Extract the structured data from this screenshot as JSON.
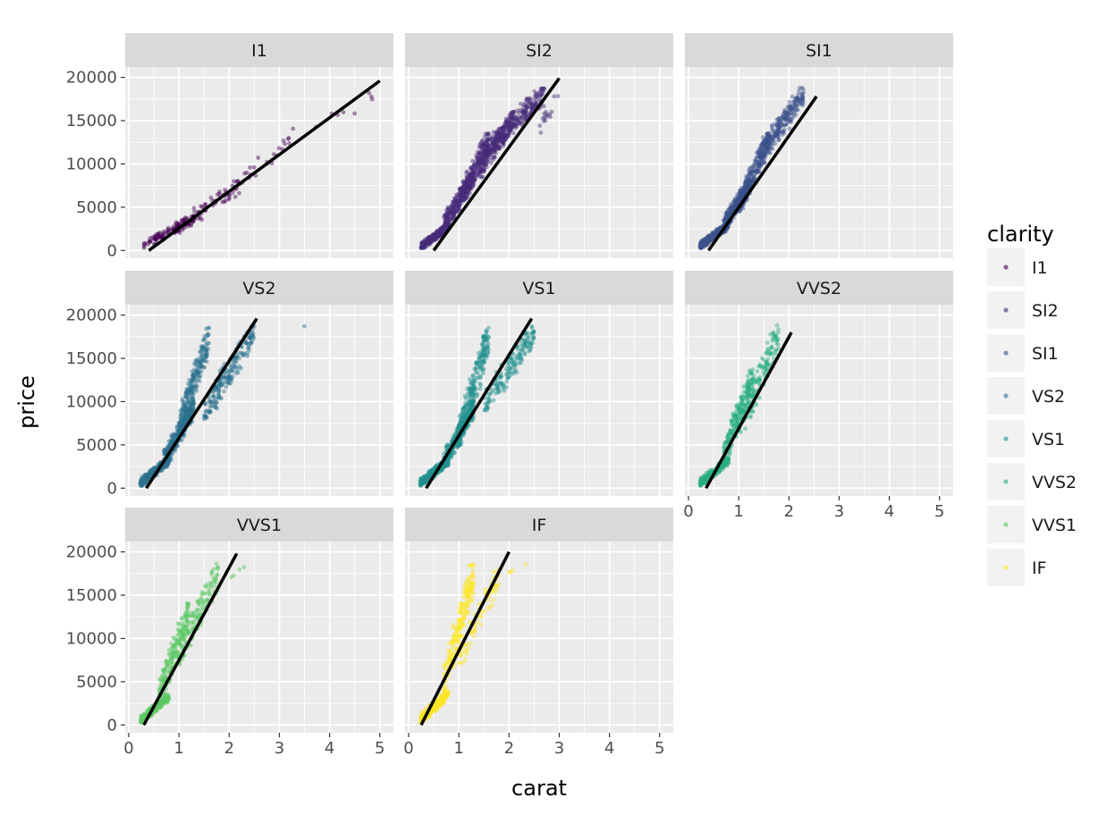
{
  "chart_data": {
    "type": "scatter",
    "facet_by": "clarity",
    "xlabel": "carat",
    "ylabel": "price",
    "xlim": [
      0,
      5.2
    ],
    "ylim": [
      0,
      20000
    ],
    "x_ticks": [
      0,
      1,
      2,
      3,
      4,
      5
    ],
    "y_ticks": [
      0,
      5000,
      10000,
      15000,
      20000
    ],
    "x_tick_labels": [
      "0",
      "1",
      "2",
      "3",
      "4",
      "5"
    ],
    "y_tick_labels": [
      "0",
      "5000",
      "10000",
      "15000",
      "20000"
    ],
    "grid": true,
    "legend": {
      "title": "clarity",
      "position": "right",
      "entries": [
        "I1",
        "SI2",
        "SI1",
        "VS2",
        "VS1",
        "VVS2",
        "VVS1",
        "IF"
      ]
    },
    "panels": [
      {
        "name": "I1",
        "color": "#440154",
        "trend": [
          [
            0.4,
            0
          ],
          [
            5.0,
            19600
          ]
        ],
        "clusters": [
          {
            "x": [
              0.3,
              1.3
            ],
            "y": [
              300,
              4000
            ],
            "n": 110
          },
          {
            "x": [
              0.9,
              2.2
            ],
            "y": [
              2000,
              8000
            ],
            "n": 70
          },
          {
            "x": [
              2.0,
              3.2
            ],
            "y": [
              6000,
              13000
            ],
            "n": 25
          },
          {
            "x": [
              3.0,
              5.0
            ],
            "y": [
              12000,
              18500
            ],
            "n": 10
          }
        ]
      },
      {
        "name": "SI2",
        "color": "#472c7a",
        "trend": [
          [
            0.5,
            0
          ],
          [
            3.0,
            19900
          ]
        ],
        "clusters": [
          {
            "x": [
              0.25,
              0.8
            ],
            "y": [
              300,
              3000
            ],
            "n": 300
          },
          {
            "x": [
              0.7,
              1.3
            ],
            "y": [
              2500,
              9000
            ],
            "n": 300
          },
          {
            "x": [
              1.0,
              1.6
            ],
            "y": [
              5000,
              13500
            ],
            "n": 200
          },
          {
            "x": [
              1.4,
              2.1
            ],
            "y": [
              8500,
              16000
            ],
            "n": 200
          },
          {
            "x": [
              1.5,
              2.7
            ],
            "y": [
              11000,
              18700
            ],
            "n": 260
          },
          {
            "x": [
              2.6,
              3.0
            ],
            "y": [
              13500,
              18600
            ],
            "n": 15
          }
        ]
      },
      {
        "name": "SI1",
        "color": "#3b518b",
        "trend": [
          [
            0.4,
            0
          ],
          [
            2.55,
            17800
          ]
        ],
        "clusters": [
          {
            "x": [
              0.23,
              0.8
            ],
            "y": [
              300,
              3200
            ],
            "n": 300
          },
          {
            "x": [
              0.7,
              1.2
            ],
            "y": [
              2500,
              8000
            ],
            "n": 300
          },
          {
            "x": [
              1.0,
              1.6
            ],
            "y": [
              4500,
              13500
            ],
            "n": 230
          },
          {
            "x": [
              1.4,
              2.3
            ],
            "y": [
              10000,
              18800
            ],
            "n": 240
          }
        ]
      },
      {
        "name": "VS2",
        "color": "#2c718e",
        "trend": [
          [
            0.35,
            0
          ],
          [
            2.55,
            19600
          ]
        ],
        "clusters": [
          {
            "x": [
              0.23,
              0.8
            ],
            "y": [
              300,
              3500
            ],
            "n": 300
          },
          {
            "x": [
              0.7,
              1.3
            ],
            "y": [
              2500,
              10000
            ],
            "n": 300
          },
          {
            "x": [
              1.0,
              1.6
            ],
            "y": [
              6000,
              18500
            ],
            "n": 240
          },
          {
            "x": [
              1.5,
              2.5
            ],
            "y": [
              8000,
              18700
            ],
            "n": 200
          },
          {
            "x": [
              3.45,
              3.55
            ],
            "y": [
              18600,
              18800
            ],
            "n": 1
          }
        ]
      },
      {
        "name": "VS1",
        "color": "#21908d",
        "trend": [
          [
            0.35,
            0
          ],
          [
            2.45,
            19600
          ]
        ],
        "clusters": [
          {
            "x": [
              0.23,
              0.8
            ],
            "y": [
              300,
              3500
            ],
            "n": 300
          },
          {
            "x": [
              0.7,
              1.3
            ],
            "y": [
              2500,
              10000
            ],
            "n": 280
          },
          {
            "x": [
              1.0,
              1.6
            ],
            "y": [
              5000,
              18500
            ],
            "n": 220
          },
          {
            "x": [
              1.5,
              2.5
            ],
            "y": [
              9000,
              18700
            ],
            "n": 160
          }
        ]
      },
      {
        "name": "VVS2",
        "color": "#27ad81",
        "trend": [
          [
            0.35,
            0
          ],
          [
            2.05,
            18000
          ]
        ],
        "clusters": [
          {
            "x": [
              0.23,
              0.8
            ],
            "y": [
              300,
              3500
            ],
            "n": 200
          },
          {
            "x": [
              0.7,
              1.3
            ],
            "y": [
              3000,
              14000
            ],
            "n": 200
          },
          {
            "x": [
              1.0,
              1.8
            ],
            "y": [
              6000,
              18800
            ],
            "n": 140
          }
        ]
      },
      {
        "name": "VVS1",
        "color": "#5cc863",
        "trend": [
          [
            0.3,
            0
          ],
          [
            2.15,
            19800
          ]
        ],
        "clusters": [
          {
            "x": [
              0.23,
              0.8
            ],
            "y": [
              300,
              3500
            ],
            "n": 200
          },
          {
            "x": [
              0.6,
              1.2
            ],
            "y": [
              2500,
              14000
            ],
            "n": 200
          },
          {
            "x": [
              1.0,
              1.8
            ],
            "y": [
              7000,
              18700
            ],
            "n": 130
          },
          {
            "x": [
              1.8,
              2.3
            ],
            "y": [
              15500,
              18500
            ],
            "n": 4
          }
        ]
      },
      {
        "name": "IF",
        "color": "#fde725",
        "trend": [
          [
            0.25,
            0
          ],
          [
            2.0,
            20000
          ]
        ],
        "clusters": [
          {
            "x": [
              0.23,
              0.8
            ],
            "y": [
              300,
              4000
            ],
            "n": 220
          },
          {
            "x": [
              0.7,
              1.3
            ],
            "y": [
              4000,
              18500
            ],
            "n": 200
          },
          {
            "x": [
              1.0,
              1.8
            ],
            "y": [
              7000,
              18000
            ],
            "n": 80
          },
          {
            "x": [
              2.0,
              2.4
            ],
            "y": [
              17500,
              18700
            ],
            "n": 4
          }
        ]
      }
    ]
  },
  "legend_colors": [
    "#440154",
    "#472c7a",
    "#3b518b",
    "#2c718e",
    "#21908d",
    "#27ad81",
    "#5cc863",
    "#fde725"
  ],
  "panel_background": "#ebebeb",
  "strip_background": "#d9d9d9"
}
